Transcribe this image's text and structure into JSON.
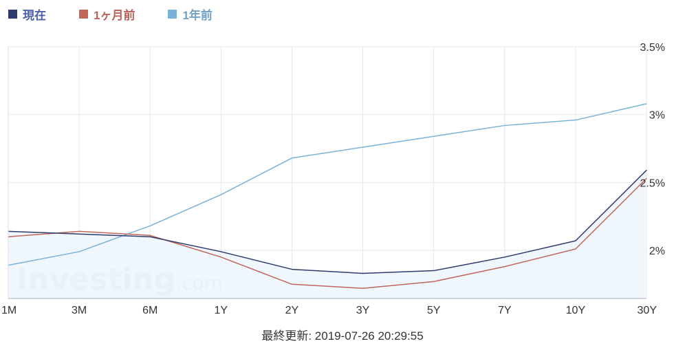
{
  "legend": [
    {
      "name": "現在",
      "color": "#2e3a6c",
      "text_color": "#4c5fa8"
    },
    {
      "name": "1ヶ月前",
      "color": "#c0665a",
      "text_color": "#b9625a"
    },
    {
      "name": "1年前",
      "color": "#79b2d6",
      "text_color": "#6fa0c6"
    }
  ],
  "watermark": {
    "brand": "Investing",
    "suffix": ".com"
  },
  "last_updated": "最終更新: 2019-07-26 20:29:55",
  "chart_data": {
    "type": "line",
    "categories": [
      "1M",
      "3M",
      "6M",
      "1Y",
      "2Y",
      "3Y",
      "5Y",
      "7Y",
      "10Y",
      "30Y"
    ],
    "yticks": [
      "3.5%",
      "3%",
      "2.5%",
      "2%"
    ],
    "ylim": [
      1.645,
      3.5
    ],
    "y_axis_side": "right",
    "grid": true,
    "legend_position": "top-left",
    "series": [
      {
        "name": "現在",
        "color": "#2e3a6c",
        "area": true,
        "values": [
          2.14,
          2.12,
          2.1,
          1.99,
          1.86,
          1.83,
          1.85,
          1.95,
          2.07,
          2.59
        ]
      },
      {
        "name": "1ヶ月前",
        "color": "#c0665a",
        "area": false,
        "values": [
          2.1,
          2.14,
          2.11,
          1.95,
          1.75,
          1.72,
          1.77,
          1.88,
          2.01,
          2.53
        ]
      },
      {
        "name": "1年前",
        "color": "#79b2d6",
        "area": false,
        "values": [
          1.89,
          1.99,
          2.18,
          2.41,
          2.68,
          2.76,
          2.84,
          2.92,
          2.96,
          3.08
        ]
      }
    ]
  }
}
